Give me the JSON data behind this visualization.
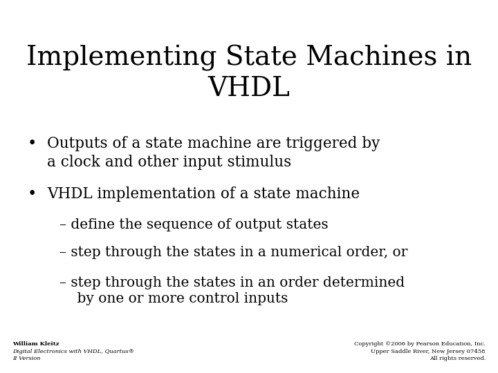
{
  "title_line1": "Implementing State Machines in",
  "title_line2": "VHDL",
  "bg_color": "#ffffff",
  "text_color": "#000000",
  "title_fontsize": 28,
  "body_fontsize": 15.5,
  "sub_fontsize": 14.5,
  "footer_fontsize": 6,
  "bullet1_line1": "Outputs of a state machine are triggered by",
  "bullet1_line2": "a clock and other input stimulus",
  "bullet2": "VHDL implementation of a state machine",
  "sub1": "– define the sequence of output states",
  "sub2": "– step through the states in a numerical order, or",
  "sub3_line1": "– step through the states in an order determined",
  "sub3_line2": "    by one or more control inputs",
  "footer_left_line1": "William Kleitz",
  "footer_left_line2": "Digital Electronics with VHDL, Quartus®",
  "footer_left_line3": "II Version",
  "footer_right_line1": "Copyright ©2006 by Pearson Education, Inc.",
  "footer_right_line2": "Upper Saddle River, New Jersey 07458",
  "footer_right_line3": "All rights reserved."
}
